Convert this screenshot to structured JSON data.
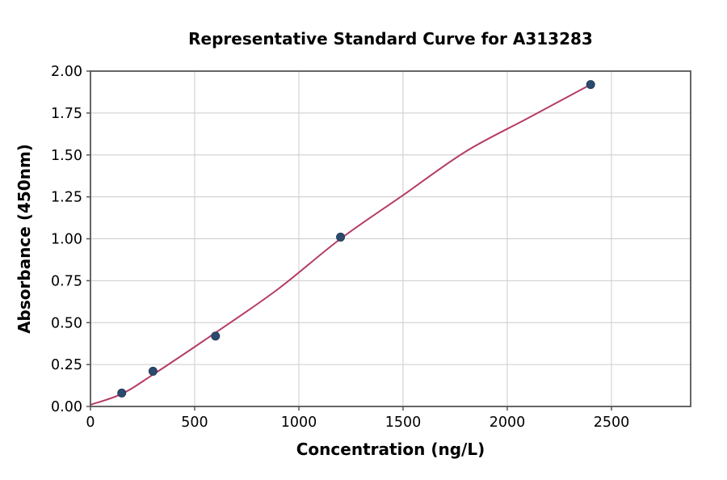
{
  "chart_data": {
    "type": "scatter",
    "title": "Representative Standard Curve for A313283",
    "xlabel": "Concentration (ng/L)",
    "ylabel": "Absorbance (450nm)",
    "xlim": [
      0,
      2880
    ],
    "ylim": [
      0,
      2.0
    ],
    "grid": true,
    "legend": "none",
    "xticks": {
      "values": [
        0,
        500,
        1000,
        1500,
        2000,
        2500
      ],
      "labels": [
        "0",
        "500",
        "1000",
        "1500",
        "2000",
        "2500"
      ]
    },
    "yticks": {
      "values": [
        0,
        0.25,
        0.5,
        0.75,
        1.0,
        1.25,
        1.5,
        1.75,
        2.0
      ],
      "labels": [
        "0.00",
        "0.25",
        "0.50",
        "0.75",
        "1.00",
        "1.25",
        "1.50",
        "1.75",
        "2.00"
      ]
    },
    "points": [
      {
        "x": 150,
        "y": 0.08
      },
      {
        "x": 300,
        "y": 0.21
      },
      {
        "x": 600,
        "y": 0.42
      },
      {
        "x": 1200,
        "y": 1.01
      },
      {
        "x": 2400,
        "y": 1.92
      }
    ],
    "fit_curve": [
      [
        0,
        0.01
      ],
      [
        150,
        0.075
      ],
      [
        300,
        0.19
      ],
      [
        600,
        0.44
      ],
      [
        900,
        0.7
      ],
      [
        1200,
        1.0
      ],
      [
        1500,
        1.26
      ],
      [
        1800,
        1.52
      ],
      [
        2100,
        1.72
      ],
      [
        2400,
        1.92
      ]
    ],
    "colors": {
      "curve": "#b53c68",
      "marker": "#2b4a6d",
      "marker_edge": "#223c5a",
      "grid": "#cccccc",
      "spine": "#555555",
      "text": "#000000",
      "background": "#ffffff"
    }
  }
}
